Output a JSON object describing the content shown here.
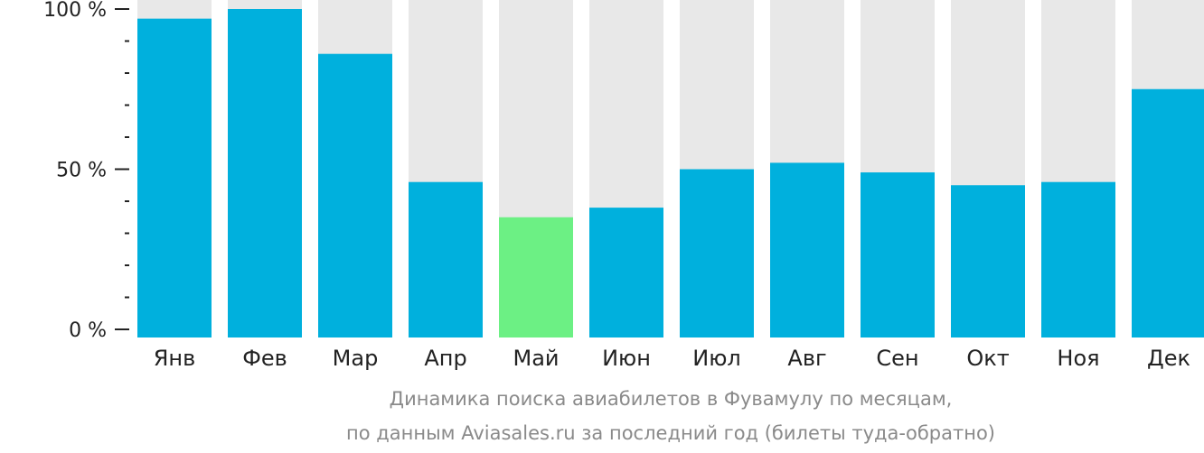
{
  "chart_data": {
    "type": "bar",
    "categories": [
      "Янв",
      "Фев",
      "Мар",
      "Апр",
      "Май",
      "Июн",
      "Июл",
      "Авг",
      "Сен",
      "Окт",
      "Ноя",
      "Дек"
    ],
    "values": [
      97,
      100,
      86,
      46,
      35,
      38,
      50,
      52,
      49,
      45,
      46,
      75
    ],
    "highlight_index": 4,
    "ylim": [
      0,
      100
    ],
    "y_ticks": [
      {
        "value": 0,
        "label": "0 %"
      },
      {
        "value": 50,
        "label": "50 %"
      },
      {
        "value": 100,
        "label": "100 %"
      }
    ],
    "minor_tick_step": 10,
    "colors": {
      "bar": "#00b0dd",
      "highlight": "#6cf084",
      "background_bar": "#e8e8e8",
      "axis": "#222222",
      "caption": "#8a8a8a"
    }
  },
  "caption": {
    "line1": "Динамика поиска авиабилетов в Фувамулу по месяцам,",
    "line2": "по данным Aviasales.ru за последний год (билеты туда-обратно)"
  }
}
